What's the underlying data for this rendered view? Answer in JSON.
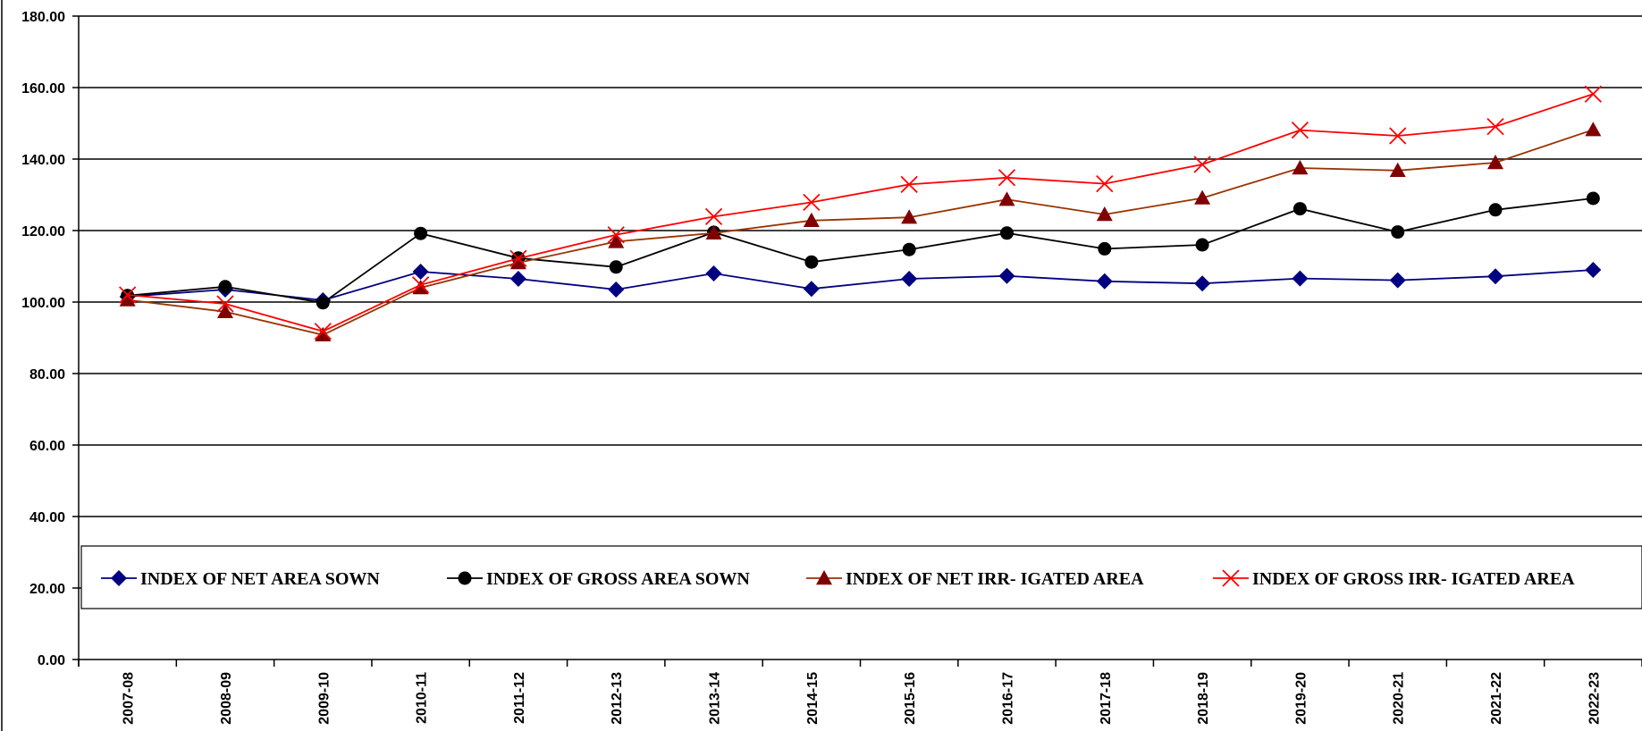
{
  "chart_data": {
    "type": "line",
    "title": "",
    "xlabel": "",
    "ylabel": "",
    "ylim": [
      0,
      180
    ],
    "yticks": [
      "0.00",
      "20.00",
      "40.00",
      "60.00",
      "80.00",
      "100.00",
      "120.00",
      "140.00",
      "160.00",
      "180.00"
    ],
    "grid": "horizontal",
    "legend_position": "inside-bottom",
    "categories": [
      "2007-08",
      "2008-09",
      "2009-10",
      "2010-11",
      "2011-12",
      "2012-13",
      "2013-14",
      "2014-15",
      "2015-16",
      "2016-17",
      "2017-18",
      "2018-19",
      "2019-20",
      "2020-21",
      "2021-22",
      "2022-23"
    ],
    "series": [
      {
        "name": "INDEX OF NET AREA SOWN",
        "color": "#000080",
        "marker": "diamond",
        "values": [
          101.5,
          103.5,
          100.5,
          108.5,
          106.5,
          103.5,
          108.0,
          103.7,
          106.5,
          107.3,
          105.8,
          105.2,
          106.6,
          106.1,
          107.2,
          109.0
        ]
      },
      {
        "name": "INDEX OF GROSS AREA SOWN",
        "color": "#000000",
        "marker": "circle",
        "values": [
          101.8,
          104.3,
          99.8,
          119.2,
          112.3,
          109.8,
          119.5,
          111.2,
          114.7,
          119.3,
          114.9,
          116.0,
          126.1,
          119.6,
          125.8,
          129.0
        ]
      },
      {
        "name": "INDEX OF NET IRR- IGATED AREA",
        "color": "#993300",
        "markerColor": "#800000",
        "marker": "triangle",
        "values": [
          100.6,
          97.3,
          90.8,
          104.0,
          111.0,
          116.9,
          119.3,
          122.8,
          123.7,
          128.7,
          124.5,
          129.1,
          137.5,
          136.8,
          139.0,
          148.2
        ]
      },
      {
        "name": "INDEX OF GROSS IRR- IGATED AREA",
        "color": "#ff0000",
        "marker": "x",
        "values": [
          102.0,
          99.5,
          91.8,
          104.8,
          112.2,
          118.8,
          123.9,
          127.9,
          132.9,
          134.8,
          133.1,
          138.5,
          148.1,
          146.5,
          149.1,
          158.2
        ]
      }
    ]
  }
}
